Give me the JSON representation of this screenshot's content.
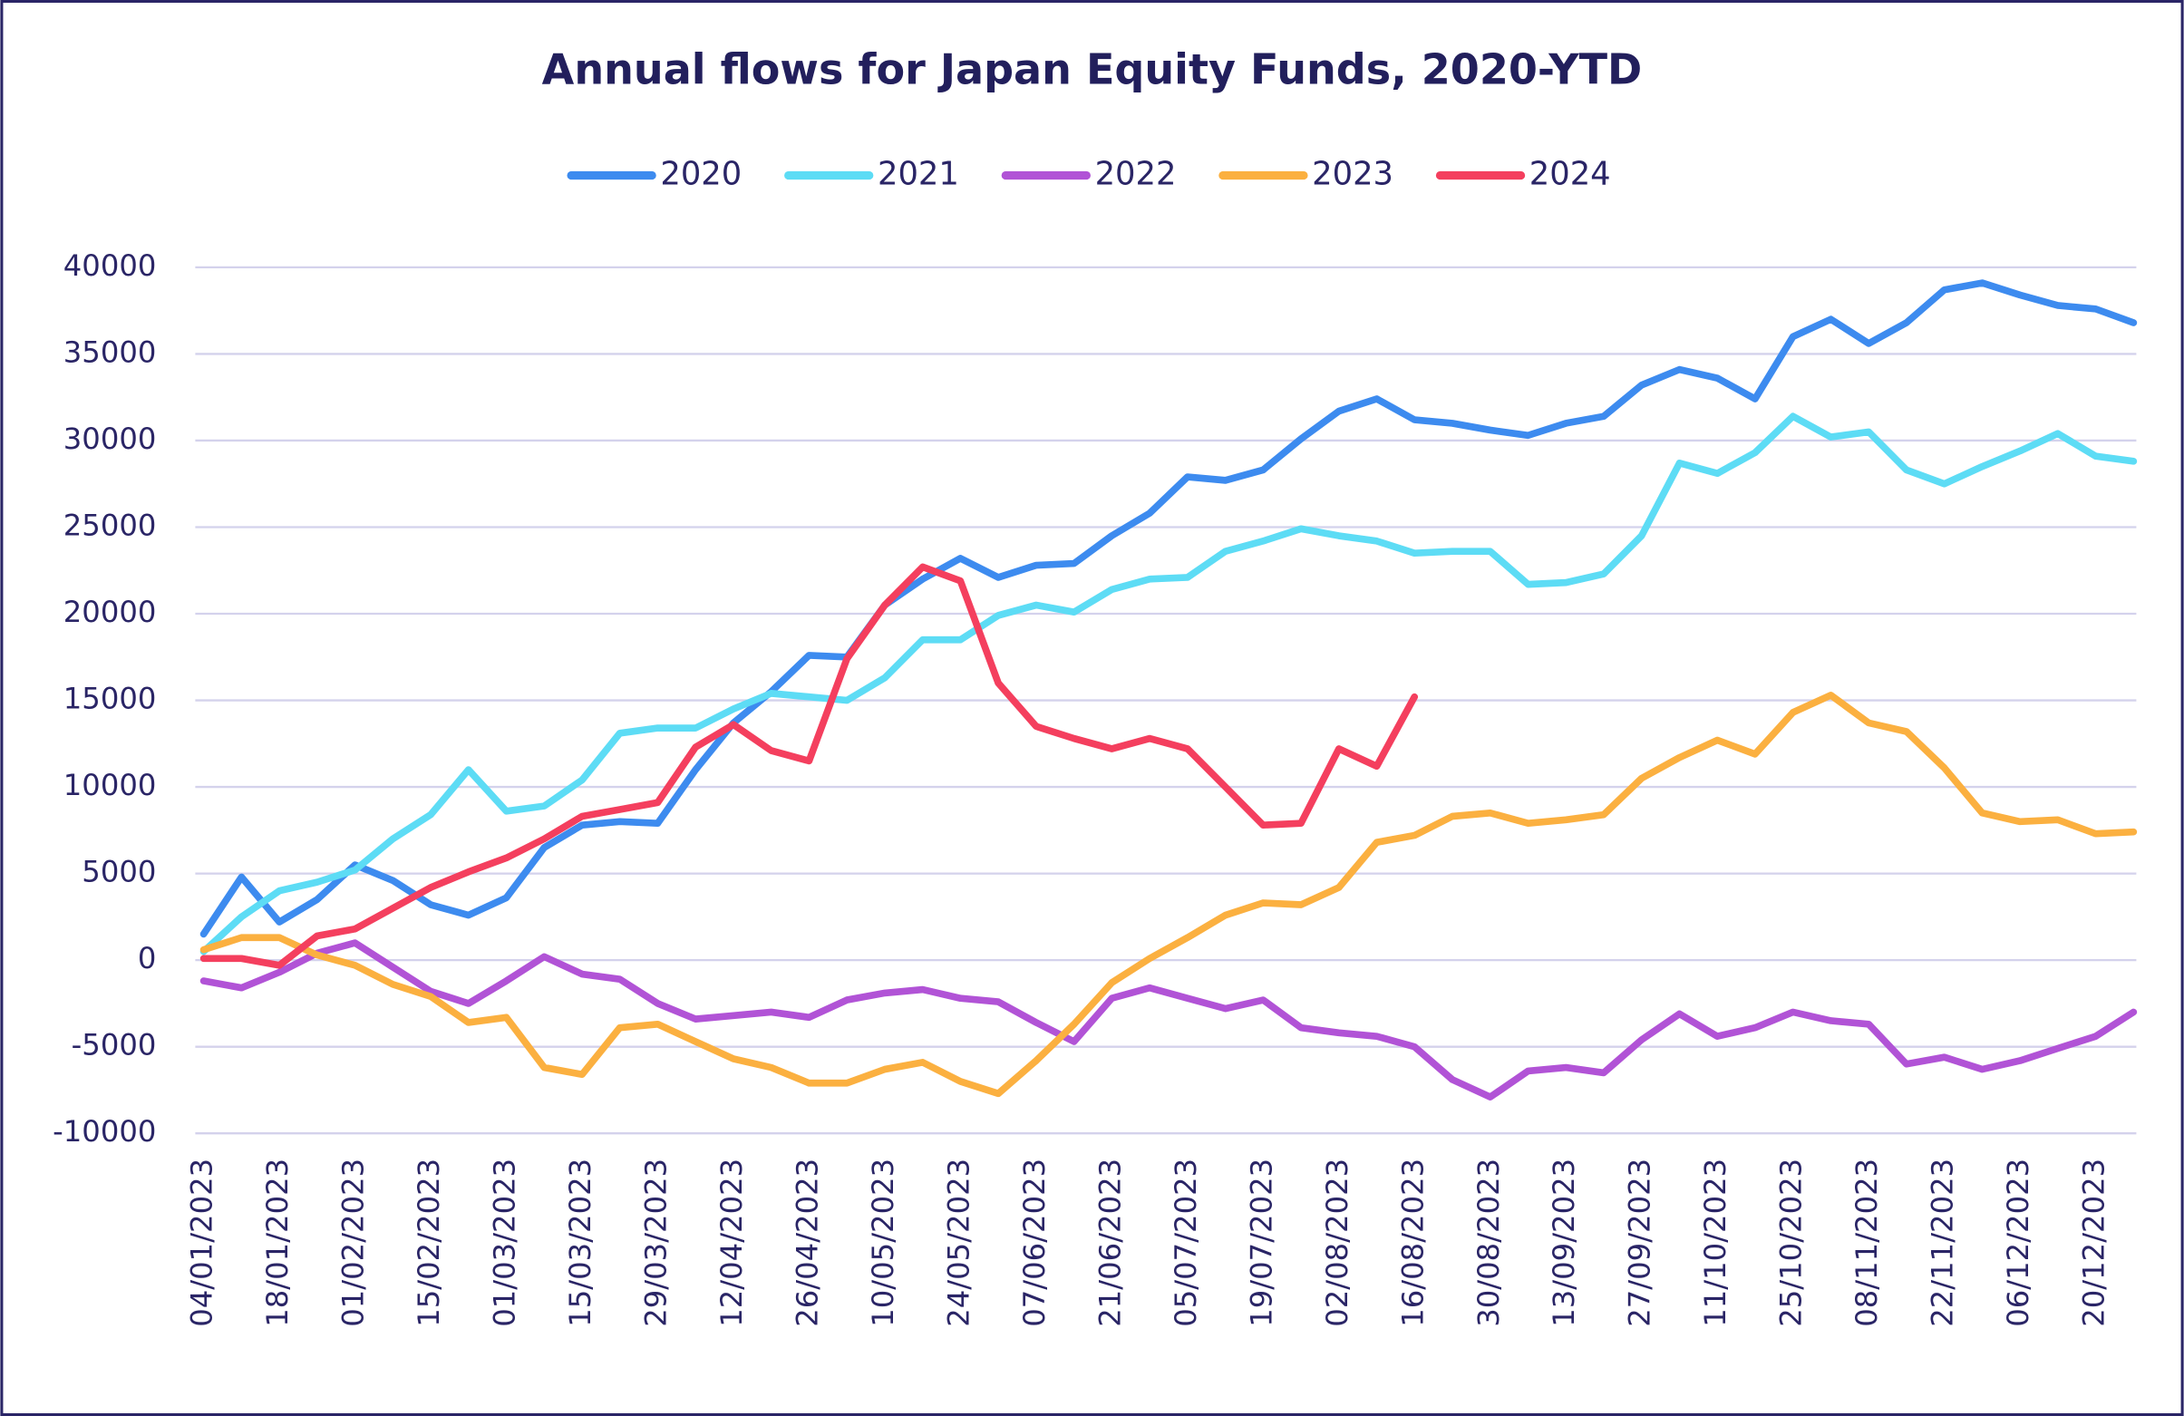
{
  "chart_data": {
    "type": "line",
    "title": "Annual flows for Japan Equity Funds, 2020-YTD",
    "categories": [
      "04/01/2023",
      null,
      "18/01/2023",
      null,
      "01/02/2023",
      null,
      "15/02/2023",
      null,
      "01/03/2023",
      null,
      "15/03/2023",
      null,
      "29/03/2023",
      null,
      "12/04/2023",
      null,
      "26/04/2023",
      null,
      "10/05/2023",
      null,
      "24/05/2023",
      null,
      "07/06/2023",
      null,
      "21/06/2023",
      null,
      "05/07/2023",
      null,
      "19/07/2023",
      null,
      "02/08/2023",
      null,
      "16/08/2023",
      null,
      "30/08/2023",
      null,
      "13/09/2023",
      null,
      "27/09/2023",
      null,
      "11/10/2023",
      null,
      "25/10/2023",
      null,
      "08/11/2023",
      null,
      "22/11/2023",
      null,
      "06/12/2023",
      null,
      "20/12/2023",
      null
    ],
    "ylim": [
      -10000,
      40000
    ],
    "yticks": [
      -10000,
      -5000,
      0,
      5000,
      10000,
      15000,
      20000,
      25000,
      30000,
      35000,
      40000
    ],
    "grid": true,
    "legend": "top",
    "series": [
      {
        "name": "2020",
        "color": "#3d8bef",
        "values": [
          1500,
          4800,
          2200,
          3500,
          5500,
          4600,
          3200,
          2600,
          3600,
          6500,
          7800,
          8000,
          7900,
          11000,
          13700,
          15500,
          17600,
          17500,
          20500,
          22000,
          23200,
          22100,
          22800,
          22900,
          24500,
          25800,
          27900,
          27700,
          28300,
          30100,
          31700,
          32400,
          31200,
          31000,
          30600,
          30300,
          31000,
          31400,
          33200,
          34100,
          33600,
          32400,
          36000,
          37000,
          35600,
          36800,
          38700,
          39100,
          38400,
          37800,
          37600,
          36800
        ]
      },
      {
        "name": "2021",
        "color": "#5ddcf5",
        "values": [
          500,
          2500,
          4000,
          4500,
          5200,
          7000,
          8400,
          11000,
          8600,
          8900,
          10400,
          13100,
          13400,
          13400,
          14500,
          15400,
          15200,
          15000,
          16300,
          18500,
          18500,
          19900,
          20500,
          20100,
          21400,
          22000,
          22100,
          23600,
          24200,
          24900,
          24500,
          24200,
          23500,
          23600,
          23600,
          21700,
          21800,
          22300,
          24500,
          28700,
          28100,
          29300,
          31400,
          30200,
          30500,
          28300,
          27500,
          28500,
          29400,
          30400,
          29100,
          28800
        ]
      },
      {
        "name": "2022",
        "color": "#b153d6",
        "values": [
          -1200,
          -1600,
          -700,
          400,
          1000,
          -400,
          -1800,
          -2500,
          -1200,
          200,
          -800,
          -1100,
          -2500,
          -3400,
          -3200,
          -3000,
          -3300,
          -2300,
          -1900,
          -1700,
          -2200,
          -2400,
          -3600,
          -4700,
          -2200,
          -1600,
          -2200,
          -2800,
          -2300,
          -3900,
          -4200,
          -4400,
          -5000,
          -6900,
          -7900,
          -6400,
          -6200,
          -6500,
          -4600,
          -3100,
          -4400,
          -3900,
          -3000,
          -3500,
          -3700,
          -6000,
          -5600,
          -6300,
          -5800,
          -5100,
          -4400,
          -3000
        ]
      },
      {
        "name": "2023",
        "color": "#fbb040",
        "values": [
          600,
          1300,
          1300,
          300,
          -300,
          -1400,
          -2100,
          -3600,
          -3300,
          -6200,
          -6600,
          -3900,
          -3700,
          -4700,
          -5700,
          -6200,
          -7100,
          -7100,
          -6300,
          -5900,
          -7000,
          -7700,
          -5800,
          -3700,
          -1300,
          100,
          1300,
          2600,
          3300,
          3200,
          4200,
          6800,
          7200,
          8300,
          8500,
          7900,
          8100,
          8400,
          10500,
          11700,
          12700,
          11900,
          14300,
          15300,
          13700,
          13200,
          11100,
          8500,
          8000,
          8100,
          7300,
          7400
        ]
      },
      {
        "name": "2024",
        "color": "#f43f5e",
        "values": [
          100,
          100,
          -300,
          1400,
          1800,
          3000,
          4200,
          5100,
          5900,
          7000,
          8300,
          8700,
          9100,
          12300,
          13600,
          12100,
          11500,
          17400,
          20500,
          22700,
          21900,
          16000,
          13500,
          12800,
          12200,
          12800,
          12200,
          10000,
          7800,
          7900,
          12200,
          11200,
          15200,
          null,
          null,
          null,
          null,
          null,
          null,
          null,
          null,
          null,
          null,
          null,
          null,
          null,
          null,
          null,
          null,
          null,
          null,
          null
        ]
      }
    ]
  }
}
